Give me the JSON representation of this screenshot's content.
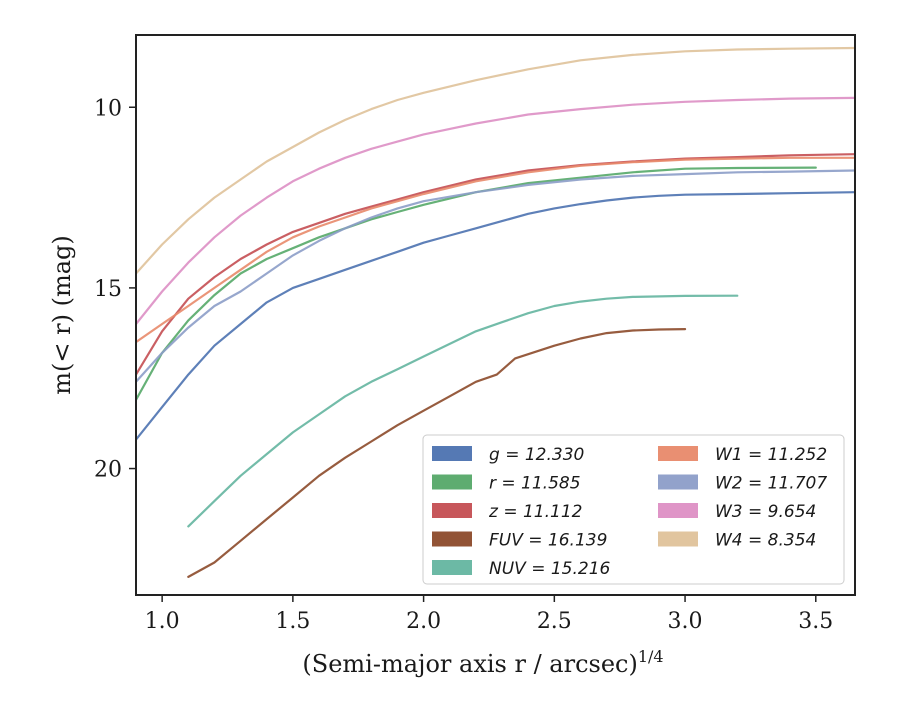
{
  "chart_data": {
    "type": "line",
    "title": "",
    "xlabel": "(Semi-major axis r / arcsec)",
    "xlabel_sup": "1/4",
    "ylabel": "m(< r) (mag)",
    "xlim": [
      0.9,
      3.65
    ],
    "ylim": [
      23.5,
      8.0
    ],
    "y_inverted": true,
    "xticks": [
      1.0,
      1.5,
      2.0,
      2.5,
      3.0,
      3.5
    ],
    "xtick_labels": [
      "1.0",
      "1.5",
      "2.0",
      "2.5",
      "3.0",
      "3.5"
    ],
    "yticks": [
      10,
      15,
      20
    ],
    "ytick_labels": [
      "10",
      "15",
      "20"
    ],
    "grid": false,
    "legend_position": "lower-right",
    "series": [
      {
        "name": "g = 12.330",
        "color": "#4c72b0",
        "x": [
          0.9,
          1.0,
          1.1,
          1.2,
          1.3,
          1.4,
          1.5,
          1.6,
          1.7,
          1.8,
          1.9,
          2.0,
          2.1,
          2.2,
          2.3,
          2.4,
          2.5,
          2.6,
          2.7,
          2.8,
          2.9,
          3.0,
          3.2,
          3.4,
          3.65
        ],
        "y": [
          19.2,
          18.3,
          17.4,
          16.6,
          16.0,
          15.4,
          15.0,
          14.75,
          14.5,
          14.25,
          14.0,
          13.75,
          13.55,
          13.35,
          13.15,
          12.95,
          12.8,
          12.68,
          12.58,
          12.5,
          12.45,
          12.42,
          12.4,
          12.38,
          12.35
        ]
      },
      {
        "name": "r = 11.585",
        "color": "#55a868",
        "x": [
          0.9,
          1.0,
          1.1,
          1.2,
          1.3,
          1.4,
          1.5,
          1.6,
          1.7,
          1.8,
          1.9,
          2.0,
          2.2,
          2.4,
          2.6,
          2.8,
          3.0,
          3.2,
          3.5
        ],
        "y": [
          18.1,
          16.8,
          15.9,
          15.2,
          14.6,
          14.2,
          13.9,
          13.6,
          13.35,
          13.1,
          12.9,
          12.7,
          12.35,
          12.1,
          11.95,
          11.8,
          11.7,
          11.68,
          11.67
        ]
      },
      {
        "name": "z = 11.112",
        "color": "#c44e52",
        "x": [
          0.9,
          1.0,
          1.1,
          1.2,
          1.3,
          1.4,
          1.5,
          1.6,
          1.7,
          1.8,
          1.9,
          2.0,
          2.2,
          2.4,
          2.6,
          2.8,
          3.0,
          3.2,
          3.4,
          3.65
        ],
        "y": [
          17.4,
          16.2,
          15.3,
          14.7,
          14.2,
          13.8,
          13.45,
          13.2,
          12.95,
          12.75,
          12.55,
          12.35,
          12.0,
          11.75,
          11.6,
          11.5,
          11.42,
          11.38,
          11.33,
          11.3
        ]
      },
      {
        "name": "FUV = 16.139",
        "color": "#8c4a2a",
        "x": [
          1.1,
          1.2,
          1.3,
          1.4,
          1.5,
          1.6,
          1.7,
          1.8,
          1.9,
          2.0,
          2.1,
          2.2,
          2.28,
          2.35,
          2.5,
          2.6,
          2.7,
          2.8,
          2.9,
          3.0
        ],
        "y": [
          23.0,
          22.6,
          22.0,
          21.4,
          20.8,
          20.2,
          19.7,
          19.25,
          18.8,
          18.4,
          18.0,
          17.6,
          17.4,
          16.95,
          16.6,
          16.4,
          16.25,
          16.18,
          16.15,
          16.14
        ]
      },
      {
        "name": "NUV = 15.216",
        "color": "#64b5a0",
        "x": [
          1.1,
          1.2,
          1.3,
          1.4,
          1.5,
          1.6,
          1.7,
          1.8,
          1.9,
          2.0,
          2.1,
          2.2,
          2.3,
          2.4,
          2.5,
          2.6,
          2.7,
          2.8,
          3.0,
          3.2
        ],
        "y": [
          21.6,
          20.9,
          20.2,
          19.6,
          19.0,
          18.5,
          18.0,
          17.6,
          17.25,
          16.9,
          16.55,
          16.2,
          15.95,
          15.7,
          15.5,
          15.38,
          15.3,
          15.25,
          15.22,
          15.216
        ]
      },
      {
        "name": "W1 = 11.252",
        "color": "#e8896a",
        "x": [
          0.9,
          1.0,
          1.1,
          1.2,
          1.3,
          1.4,
          1.5,
          1.6,
          1.7,
          1.8,
          1.9,
          2.0,
          2.2,
          2.4,
          2.6,
          2.8,
          3.0,
          3.2,
          3.4,
          3.65
        ],
        "y": [
          16.5,
          16.0,
          15.5,
          15.0,
          14.5,
          14.0,
          13.6,
          13.3,
          13.05,
          12.8,
          12.6,
          12.4,
          12.05,
          11.8,
          11.62,
          11.52,
          11.45,
          11.42,
          11.4,
          11.4
        ]
      },
      {
        "name": "W2 = 11.707",
        "color": "#8c9dc8",
        "x": [
          0.9,
          1.0,
          1.1,
          1.2,
          1.3,
          1.4,
          1.5,
          1.6,
          1.7,
          1.8,
          1.9,
          2.0,
          2.2,
          2.4,
          2.6,
          2.8,
          3.0,
          3.2,
          3.4,
          3.65
        ],
        "y": [
          17.6,
          16.8,
          16.1,
          15.5,
          15.1,
          14.6,
          14.1,
          13.7,
          13.35,
          13.05,
          12.8,
          12.6,
          12.35,
          12.15,
          12.0,
          11.9,
          11.85,
          11.8,
          11.78,
          11.75
        ]
      },
      {
        "name": "W3 = 9.654",
        "color": "#dd8fc4",
        "x": [
          0.9,
          1.0,
          1.1,
          1.2,
          1.3,
          1.4,
          1.5,
          1.6,
          1.7,
          1.8,
          1.9,
          2.0,
          2.2,
          2.4,
          2.6,
          2.8,
          3.0,
          3.2,
          3.4,
          3.65
        ],
        "y": [
          16.0,
          15.1,
          14.3,
          13.6,
          13.0,
          12.5,
          12.05,
          11.7,
          11.4,
          11.15,
          10.95,
          10.75,
          10.45,
          10.2,
          10.05,
          9.93,
          9.85,
          9.8,
          9.76,
          9.74
        ]
      },
      {
        "name": "W4 = 8.354",
        "color": "#dfc29a",
        "x": [
          0.9,
          1.0,
          1.1,
          1.2,
          1.3,
          1.4,
          1.5,
          1.6,
          1.7,
          1.8,
          1.9,
          2.0,
          2.2,
          2.4,
          2.6,
          2.8,
          3.0,
          3.2,
          3.4,
          3.65
        ],
        "y": [
          14.6,
          13.8,
          13.1,
          12.5,
          12.0,
          11.5,
          11.1,
          10.7,
          10.35,
          10.05,
          9.8,
          9.6,
          9.25,
          8.95,
          8.7,
          8.55,
          8.45,
          8.4,
          8.38,
          8.36
        ]
      }
    ]
  }
}
